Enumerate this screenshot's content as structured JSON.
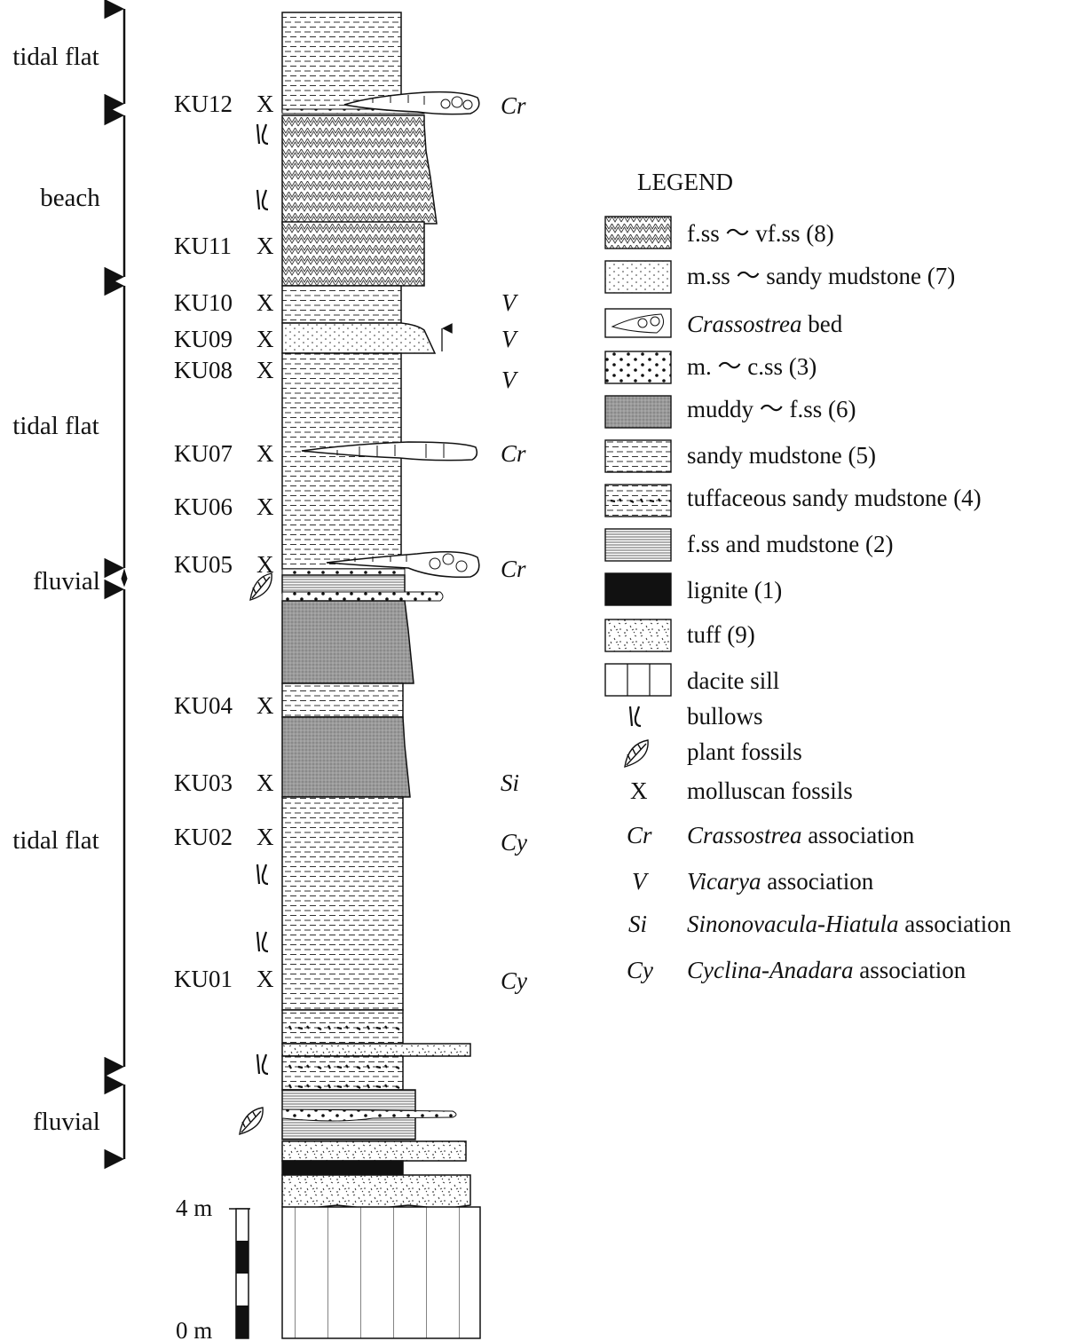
{
  "environments": [
    {
      "label": "tidal flat",
      "span": [
        "top",
        "KU12"
      ]
    },
    {
      "label": "beach",
      "span": [
        "KU12",
        "KU10"
      ]
    },
    {
      "label": "tidal flat",
      "span": [
        "KU10",
        "KU05"
      ]
    },
    {
      "label": "fluvial",
      "span": [
        "KU05",
        "KU05 base"
      ]
    },
    {
      "label": "tidal flat",
      "span": [
        "KU04 base",
        "tuff"
      ]
    },
    {
      "label": "fluvial",
      "span": [
        "tuff",
        "lignite"
      ]
    }
  ],
  "samples": [
    {
      "id": "KU12",
      "marker": "X",
      "association": "Cr"
    },
    {
      "id": "KU11",
      "marker": "X",
      "association": ""
    },
    {
      "id": "KU10",
      "marker": "X",
      "association": "V"
    },
    {
      "id": "KU09",
      "marker": "X",
      "association": "V"
    },
    {
      "id": "KU08",
      "marker": "X",
      "association": "V"
    },
    {
      "id": "KU07",
      "marker": "X",
      "association": "Cr"
    },
    {
      "id": "KU06",
      "marker": "X",
      "association": ""
    },
    {
      "id": "KU05",
      "marker": "X",
      "association": "Cr"
    },
    {
      "id": "KU04",
      "marker": "X",
      "association": ""
    },
    {
      "id": "KU03",
      "marker": "X",
      "association": "Si"
    },
    {
      "id": "KU02",
      "marker": "X",
      "association": "Cy"
    },
    {
      "id": "KU01",
      "marker": "X",
      "association": "Cy"
    }
  ],
  "scale": {
    "top_label": "4 m",
    "bottom_label": "0 m"
  },
  "legend": {
    "title": "LEGEND",
    "items": [
      {
        "key": "fss",
        "label": "f.ss ～ vf.ss (8)"
      },
      {
        "key": "mss_mud",
        "label": "m.ss ～ sandy mudstone (7)"
      },
      {
        "key": "crass",
        "label_italic": "Crassostrea",
        "label_rest": " bed"
      },
      {
        "key": "mcss",
        "label": "m. ～ c.ss (3)"
      },
      {
        "key": "muddy",
        "label": "muddy ～ f.ss (6)"
      },
      {
        "key": "sandymud",
        "label": "sandy mudstone (5)"
      },
      {
        "key": "tuffmud",
        "label": "tuffaceous sandy mudstone (4)"
      },
      {
        "key": "fssmud",
        "label": "f.ss and mudstone (2)"
      },
      {
        "key": "lignite",
        "label": "lignite (1)"
      },
      {
        "key": "tuff",
        "label": "tuff (9)"
      },
      {
        "key": "dacite",
        "label": "dacite sill"
      },
      {
        "key": "burrow",
        "label": "bullows"
      },
      {
        "key": "plant",
        "label": "plant fossils"
      },
      {
        "key": "mollusc",
        "symbol": "X",
        "label": "molluscan fossils"
      },
      {
        "key": "cr",
        "symbol": "Cr",
        "label_italic": "Crassostrea",
        "label_rest": " association"
      },
      {
        "key": "v",
        "symbol": "V",
        "label_italic": "Vicarya",
        "label_rest": " association"
      },
      {
        "key": "si",
        "symbol": "Si",
        "label_italic": "Sinonovacula-Hiatula",
        "label_rest": " association"
      },
      {
        "key": "cy",
        "symbol": "Cy",
        "label_italic": "Cyclina-Anadara",
        "label_rest": " association"
      }
    ]
  }
}
